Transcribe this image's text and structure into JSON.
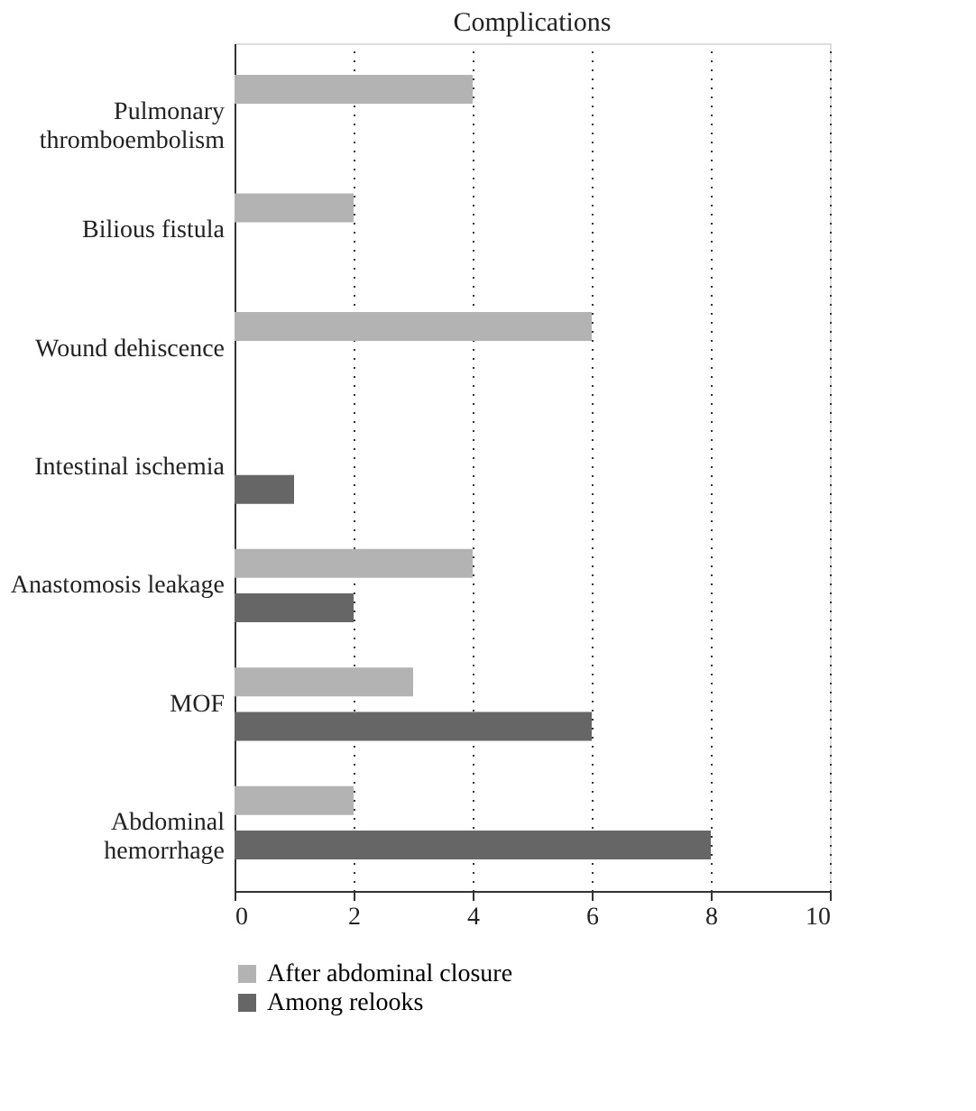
{
  "chart_data": {
    "type": "bar",
    "orientation": "horizontal",
    "title": "Complications",
    "categories": [
      "Pulmonary\nthromboembolism",
      "Bilious fistula",
      "Wound dehiscence",
      "Intestinal ischemia",
      "Anastomosis leakage",
      "MOF",
      "Abdominal\nhemorrhage"
    ],
    "series": [
      {
        "name": "After abdominal closure",
        "color": "#b3b3b3",
        "values": [
          4,
          2,
          6,
          null,
          4,
          3,
          2
        ]
      },
      {
        "name": "Among relooks",
        "color": "#666666",
        "values": [
          null,
          null,
          null,
          1,
          2,
          6,
          8
        ]
      }
    ],
    "xlim": [
      0,
      10
    ],
    "xticks": [
      0,
      2,
      4,
      6,
      8,
      10
    ],
    "grid": "x",
    "legend": "bottom"
  }
}
